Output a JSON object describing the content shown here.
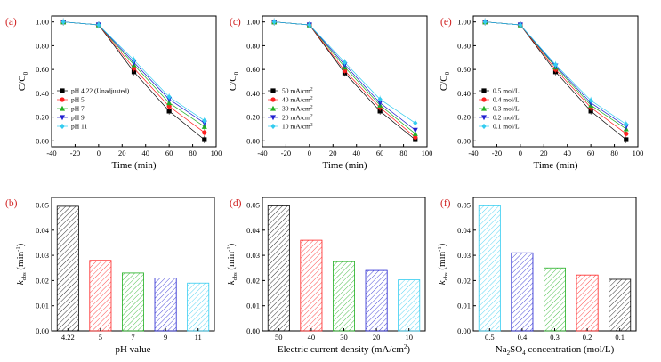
{
  "chart_data": [
    {
      "panel": "(a)",
      "type": "line",
      "xlabel": "Time (min)",
      "ylabel": "C/C",
      "ylabel_sub": "0",
      "x": [
        -30,
        0,
        30,
        60,
        90
      ],
      "xlim": [
        -40,
        100
      ],
      "ylim": [
        -0.05,
        1.05
      ],
      "xticks": [
        -40,
        -20,
        0,
        20,
        40,
        60,
        80,
        100
      ],
      "yticks": [
        0.0,
        0.2,
        0.4,
        0.6,
        0.8,
        1.0
      ],
      "xticklabels": [
        "-40",
        "-20",
        "0",
        "20",
        "40",
        "60",
        "80",
        "100"
      ],
      "yticklabels": [
        "0.00",
        "0.20",
        "0.40",
        "0.60",
        "0.80",
        "1.00"
      ],
      "series": [
        {
          "name": "pH 4.22 (Unadjusted)",
          "color": "#000000",
          "marker": "square",
          "values": [
            1.0,
            0.975,
            0.58,
            0.25,
            0.01
          ]
        },
        {
          "name": "pH 5",
          "color": "#ff2020",
          "marker": "circle",
          "values": [
            1.0,
            0.975,
            0.61,
            0.29,
            0.07
          ]
        },
        {
          "name": "pH 7",
          "color": "#22b022",
          "marker": "triangle-up",
          "values": [
            1.0,
            0.975,
            0.64,
            0.32,
            0.12
          ]
        },
        {
          "name": "pH 9",
          "color": "#2020d0",
          "marker": "triangle-down",
          "values": [
            1.0,
            0.975,
            0.66,
            0.35,
            0.15
          ]
        },
        {
          "name": "pH 11",
          "color": "#33ccf0",
          "marker": "diamond",
          "values": [
            1.0,
            0.975,
            0.68,
            0.37,
            0.17
          ]
        }
      ]
    },
    {
      "panel": "(c)",
      "type": "line",
      "xlabel": "Time (min)",
      "ylabel": "C/C",
      "ylabel_sub": "0",
      "x": [
        -30,
        0,
        30,
        60,
        90
      ],
      "xlim": [
        -40,
        100
      ],
      "ylim": [
        -0.05,
        1.05
      ],
      "xticks": [
        -40,
        -20,
        0,
        20,
        40,
        60,
        80,
        100
      ],
      "yticks": [
        0.0,
        0.2,
        0.4,
        0.6,
        0.8,
        1.0
      ],
      "xticklabels": [
        "-40",
        "-20",
        "0",
        "20",
        "40",
        "60",
        "80",
        "100"
      ],
      "yticklabels": [
        "0.00",
        "0.20",
        "0.40",
        "0.60",
        "0.80",
        "1.00"
      ],
      "series": [
        {
          "name": "50 mA/cm",
          "sup": "2",
          "color": "#000000",
          "marker": "square",
          "values": [
            1.0,
            0.975,
            0.57,
            0.25,
            0.01
          ]
        },
        {
          "name": "40 mA/cm",
          "sup": "2",
          "color": "#ff2020",
          "marker": "circle",
          "values": [
            1.0,
            0.975,
            0.59,
            0.28,
            0.03
          ]
        },
        {
          "name": "30 mA/cm",
          "sup": "2",
          "color": "#22b022",
          "marker": "triangle-up",
          "values": [
            1.0,
            0.975,
            0.62,
            0.3,
            0.06
          ]
        },
        {
          "name": "20 mA/cm",
          "sup": "2",
          "color": "#2020d0",
          "marker": "triangle-down",
          "values": [
            1.0,
            0.975,
            0.64,
            0.32,
            0.09
          ]
        },
        {
          "name": "10 mA/cm",
          "sup": "2",
          "color": "#33ccf0",
          "marker": "diamond",
          "values": [
            1.0,
            0.975,
            0.66,
            0.35,
            0.15
          ]
        }
      ]
    },
    {
      "panel": "(e)",
      "type": "line",
      "xlabel": "Time (min)",
      "ylabel": "C/C",
      "ylabel_sub": "0",
      "x": [
        -30,
        0,
        30,
        60,
        90
      ],
      "xlim": [
        -40,
        100
      ],
      "ylim": [
        -0.05,
        1.05
      ],
      "xticks": [
        -40,
        -20,
        0,
        20,
        40,
        60,
        80,
        100
      ],
      "yticks": [
        0.0,
        0.2,
        0.4,
        0.6,
        0.8,
        1.0
      ],
      "xticklabels": [
        "-40",
        "-20",
        "0",
        "20",
        "40",
        "60",
        "80",
        "100"
      ],
      "yticklabels": [
        "0.00",
        "0.20",
        "0.40",
        "0.60",
        "0.80",
        "1.00"
      ],
      "series": [
        {
          "name": "0.5 mol/L",
          "color": "#000000",
          "marker": "square",
          "values": [
            1.0,
            0.975,
            0.58,
            0.25,
            0.01
          ]
        },
        {
          "name": "0.4 mol/L",
          "color": "#ff2020",
          "marker": "circle",
          "values": [
            1.0,
            0.975,
            0.6,
            0.28,
            0.06
          ]
        },
        {
          "name": "0.3 mol/L",
          "color": "#22b022",
          "marker": "triangle-up",
          "values": [
            1.0,
            0.975,
            0.62,
            0.3,
            0.1
          ]
        },
        {
          "name": "0.2 mol/L",
          "color": "#2020d0",
          "marker": "triangle-down",
          "values": [
            1.0,
            0.975,
            0.63,
            0.32,
            0.12
          ]
        },
        {
          "name": "0.1 mol/L",
          "color": "#33ccf0",
          "marker": "diamond",
          "values": [
            1.0,
            0.975,
            0.64,
            0.34,
            0.14
          ]
        }
      ]
    },
    {
      "panel": "(b)",
      "type": "bar",
      "xlabel": "pH value",
      "ylabel": "k",
      "ylabel_sub": "obs",
      "ylabel_unit": "(min",
      "ylabel_sup": "-1",
      "ylabel_close": ")",
      "categories": [
        "4.22",
        "5",
        "7",
        "9",
        "11"
      ],
      "values": [
        0.0495,
        0.028,
        0.023,
        0.021,
        0.019
      ],
      "colors": [
        "#000000",
        "#ff2020",
        "#22b022",
        "#2020d0",
        "#33ccf0"
      ],
      "ylim": [
        0,
        0.053
      ],
      "yticks": [
        0.0,
        0.01,
        0.02,
        0.03,
        0.04,
        0.05
      ],
      "yticklabels": [
        "0.00",
        "0.01",
        "0.02",
        "0.03",
        "0.04",
        "0.05"
      ]
    },
    {
      "panel": "(d)",
      "type": "bar",
      "xlabel": "Electric current density (mA/cm",
      "xlabel_sup": "2",
      "xlabel_close": ")",
      "ylabel": "k",
      "ylabel_sub": "obs",
      "ylabel_unit": "(min",
      "ylabel_sup": "-1",
      "ylabel_close": ")",
      "categories": [
        "50",
        "40",
        "30",
        "20",
        "10"
      ],
      "values": [
        0.0497,
        0.036,
        0.0275,
        0.024,
        0.0203
      ],
      "colors": [
        "#000000",
        "#ff2020",
        "#22b022",
        "#2020d0",
        "#33ccf0"
      ],
      "ylim": [
        0,
        0.053
      ],
      "yticks": [
        0.0,
        0.01,
        0.02,
        0.03,
        0.04,
        0.05
      ],
      "yticklabels": [
        "0.00",
        "0.01",
        "0.02",
        "0.03",
        "0.04",
        "0.05"
      ]
    },
    {
      "panel": "(f)",
      "type": "bar",
      "xlabel": "Na",
      "xlabel_sub": "2",
      "xlabel_mid": "SO",
      "xlabel_sub2": "4",
      "xlabel_close": " concentration  (mol/L)",
      "ylabel": "k",
      "ylabel_sub": "obs",
      "ylabel_unit": "(min",
      "ylabel_sup": "-1",
      "ylabel_close": ")",
      "categories": [
        "0.5",
        "0.4",
        "0.3",
        "0.2",
        "0.1"
      ],
      "values": [
        0.0497,
        0.031,
        0.025,
        0.0222,
        0.0205
      ],
      "colors": [
        "#33ccf0",
        "#2020d0",
        "#22b022",
        "#ff2020",
        "#000000"
      ],
      "ylim": [
        0,
        0.053
      ],
      "yticks": [
        0.0,
        0.01,
        0.02,
        0.03,
        0.04,
        0.05
      ],
      "yticklabels": [
        "0.00",
        "0.01",
        "0.02",
        "0.03",
        "0.04",
        "0.05"
      ]
    }
  ]
}
